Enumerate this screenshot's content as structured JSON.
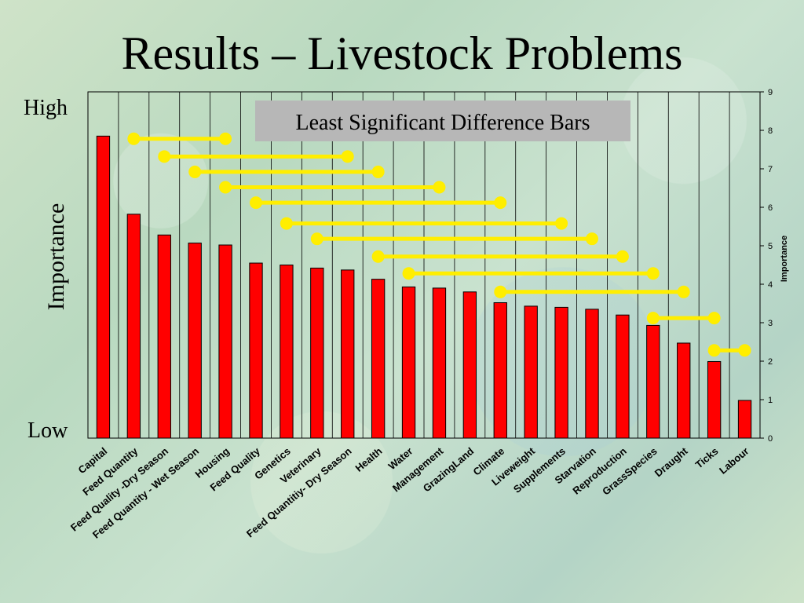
{
  "slide": {
    "title": "Results – Livestock Problems",
    "high_label": "High",
    "low_label": "Low",
    "importance_label": "Importance"
  },
  "chart_data": {
    "type": "bar",
    "categories": [
      "Capital",
      "Feed Quantity",
      "Feed Quality -Dry Season",
      "Feed Quantity - Wet Season",
      "Housing",
      "Feed Quality",
      "Genetics",
      "Veterinary",
      "Feed Quantitiy- Dry Season",
      "Health",
      "Water",
      "Management",
      "GrazingLand",
      "Climate",
      "Liveweight",
      "Supplements",
      "Starvation",
      "Reproduction",
      "GrassSpecies",
      "Draught",
      "Ticks",
      "Labour"
    ],
    "values": [
      7.85,
      5.82,
      5.28,
      5.07,
      5.02,
      4.55,
      4.5,
      4.42,
      4.37,
      4.13,
      3.93,
      3.9,
      3.8,
      3.52,
      3.43,
      3.4,
      3.35,
      3.2,
      2.93,
      2.47,
      1.99,
      0.98
    ],
    "ylabel": "Importance",
    "ylim": [
      0,
      9
    ],
    "yticks": [
      "0",
      "1",
      "2",
      "3",
      "4",
      "5",
      "6",
      "7",
      "8",
      "9"
    ],
    "bar_color": "#ff0000",
    "lsd_color": "#ffee00",
    "annotation": "Least Significant Difference Bars",
    "lsd_bars": [
      {
        "y": 7.78,
        "from": 1,
        "to": 4
      },
      {
        "y": 7.32,
        "from": 2,
        "to": 8
      },
      {
        "y": 6.92,
        "from": 3,
        "to": 9
      },
      {
        "y": 6.52,
        "from": 4,
        "to": 11
      },
      {
        "y": 6.12,
        "from": 5,
        "to": 13
      },
      {
        "y": 5.58,
        "from": 6,
        "to": 15
      },
      {
        "y": 5.18,
        "from": 7,
        "to": 16
      },
      {
        "y": 4.72,
        "from": 9,
        "to": 17
      },
      {
        "y": 4.28,
        "from": 10,
        "to": 18
      },
      {
        "y": 3.8,
        "from": 13,
        "to": 19
      },
      {
        "y": 3.12,
        "from": 18,
        "to": 20
      },
      {
        "y": 2.28,
        "from": 20,
        "to": 21
      }
    ]
  }
}
